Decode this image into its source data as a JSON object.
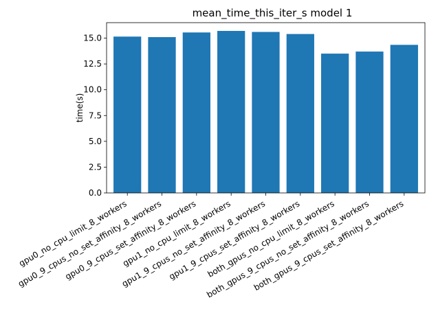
{
  "chart_data": {
    "type": "bar",
    "title": "mean_time_this_iter_s model 1",
    "xlabel": "",
    "ylabel": "time(s)",
    "ylim": [
      0,
      16.5
    ],
    "yticks": [
      "0.0",
      "2.5",
      "5.0",
      "7.5",
      "10.0",
      "12.5",
      "15.0"
    ],
    "grid": false,
    "bar_color": "#1f77b4",
    "categories": [
      "gpu0_no_cpu_limit_8_workers",
      "gpu0_9_cpus_no_set_affinity_8_workers",
      "gpu0_9_cpus_set_affinity_8_workers",
      "gpu1_no_cpu_limit_8_workers",
      "gpu1_9_cpus_no_set_affinity_8_workers",
      "gpu1_9_cpus_set_affinity_8_workers",
      "both_gpus_no_cpu_limit_8_workers",
      "both_gpus_9_cpus_no_set_affinity_8_workers",
      "both_gpus_9_cpus_set_affinity_8_workers"
    ],
    "values": [
      15.15,
      15.1,
      15.55,
      15.7,
      15.6,
      15.4,
      13.5,
      13.7,
      14.35
    ]
  }
}
